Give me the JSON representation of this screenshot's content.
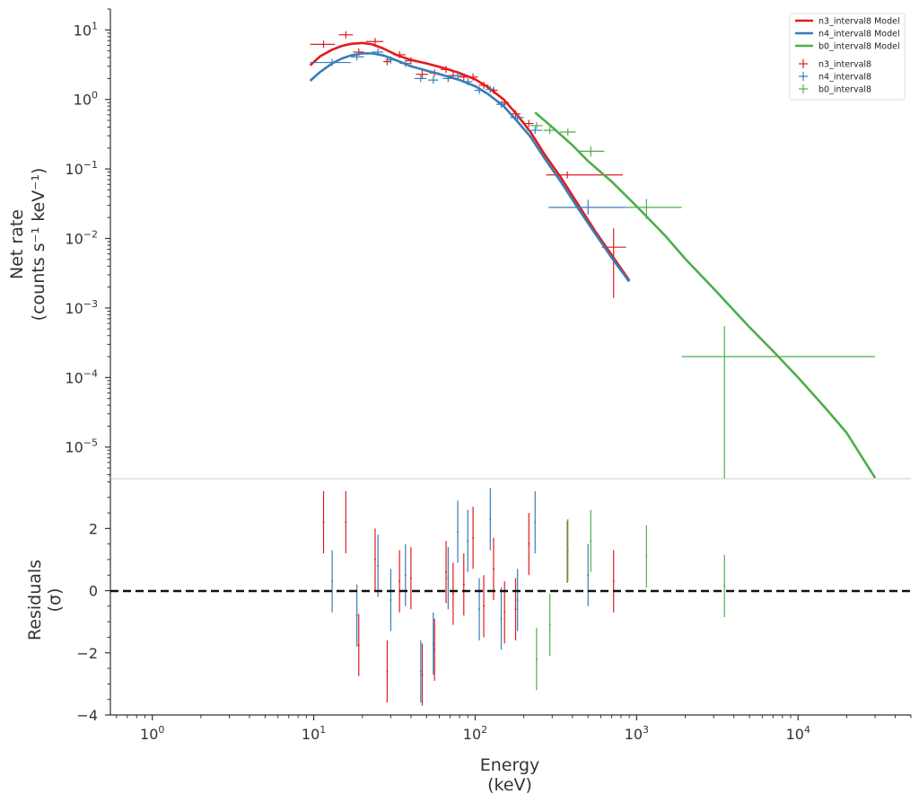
{
  "chart_data": {
    "type": "scatter",
    "x_scale": "log",
    "y_scale_top": "log",
    "xlabel": "Energy",
    "xlabel_unit": "(keV)",
    "ylabel_top": "Net rate",
    "ylabel_top_unit": "(counts s⁻¹ keV⁻¹)",
    "ylabel_bottom": "Residuals",
    "ylabel_bottom_unit": "(σ)",
    "xlim": [
      0.55,
      50000
    ],
    "ylim_top": [
      3.5e-06,
      20
    ],
    "ylim_bottom": [
      -4,
      3.6
    ],
    "legend_position": "top-right",
    "x_ticks": [
      {
        "value": 1,
        "base": "10",
        "exp": "0"
      },
      {
        "value": 10,
        "base": "10",
        "exp": "1"
      },
      {
        "value": 100,
        "base": "10",
        "exp": "2"
      },
      {
        "value": 1000,
        "base": "10",
        "exp": "3"
      },
      {
        "value": 10000,
        "base": "10",
        "exp": "4"
      }
    ],
    "y_ticks_top": [
      {
        "value": 10,
        "base": "10",
        "exp": "1"
      },
      {
        "value": 1,
        "base": "10",
        "exp": "0"
      },
      {
        "value": 0.1,
        "base": "10",
        "exp": "−1"
      },
      {
        "value": 0.01,
        "base": "10",
        "exp": "−2"
      },
      {
        "value": 0.001,
        "base": "10",
        "exp": "−3"
      },
      {
        "value": 0.0001,
        "base": "10",
        "exp": "−4"
      },
      {
        "value": 1e-05,
        "base": "10",
        "exp": "−5"
      }
    ],
    "y_ticks_bottom": [
      {
        "value": 2,
        "label": "2"
      },
      {
        "value": 0,
        "label": "0"
      },
      {
        "value": -2,
        "label": "−2"
      },
      {
        "value": -4,
        "label": "−4"
      }
    ],
    "series": [
      {
        "name": "n3_interval8",
        "model_name": "n3_interval8 Model",
        "color": "#e41a1c",
        "model": [
          [
            9.5,
            3.1
          ],
          [
            11,
            4.2
          ],
          [
            13,
            5.2
          ],
          [
            15,
            5.9
          ],
          [
            17,
            6.3
          ],
          [
            20,
            6.5
          ],
          [
            23,
            6.2
          ],
          [
            27,
            5.4
          ],
          [
            33,
            4.3
          ],
          [
            40,
            3.7
          ],
          [
            50,
            3.3
          ],
          [
            65,
            2.8
          ],
          [
            80,
            2.4
          ],
          [
            100,
            1.95
          ],
          [
            120,
            1.5
          ],
          [
            150,
            1.0
          ],
          [
            180,
            0.62
          ],
          [
            220,
            0.34
          ],
          [
            270,
            0.16
          ],
          [
            340,
            0.075
          ],
          [
            430,
            0.032
          ],
          [
            550,
            0.013
          ],
          [
            700,
            0.0058
          ],
          [
            900,
            0.0025
          ]
        ],
        "points": [
          {
            "x": 11.5,
            "xlo": 9.5,
            "xhi": 13.5,
            "y": 6.2,
            "ylo": 6.2,
            "yhi": 6.2,
            "res": 2.2
          },
          {
            "x": 15.8,
            "xlo": 14.3,
            "xhi": 17.5,
            "y": 8.5,
            "ylo": 8.5,
            "yhi": 8.5,
            "res": 2.2
          },
          {
            "x": 19,
            "xlo": 17.5,
            "xhi": 20.5,
            "y": 4.8,
            "ylo": 4.8,
            "yhi": 4.8,
            "res": -1.75
          },
          {
            "x": 24,
            "xlo": 21,
            "xhi": 27,
            "y": 6.8,
            "ylo": 6.8,
            "yhi": 6.8,
            "res": 1.0
          },
          {
            "x": 28.5,
            "xlo": 27,
            "xhi": 30,
            "y": 3.5,
            "ylo": 3.5,
            "yhi": 3.5,
            "res": -2.6
          },
          {
            "x": 34,
            "xlo": 31,
            "xhi": 37,
            "y": 4.4,
            "ylo": 4.4,
            "yhi": 4.4,
            "res": 0.3
          },
          {
            "x": 40,
            "xlo": 37,
            "xhi": 43,
            "y": 3.6,
            "ylo": 3.6,
            "yhi": 3.6,
            "res": 0.4
          },
          {
            "x": 47,
            "xlo": 43,
            "xhi": 51,
            "y": 2.3,
            "ylo": 2.3,
            "yhi": 2.3,
            "res": -2.7
          },
          {
            "x": 56,
            "xlo": 52,
            "xhi": 60,
            "y": 2.4,
            "ylo": 2.4,
            "yhi": 2.4,
            "res": -1.9
          },
          {
            "x": 66,
            "xlo": 61,
            "xhi": 71,
            "y": 2.7,
            "ylo": 2.7,
            "yhi": 2.7,
            "res": 0.6
          },
          {
            "x": 73,
            "xlo": 69,
            "xhi": 77,
            "y": 2.2,
            "ylo": 2.2,
            "yhi": 2.2,
            "res": -0.1
          },
          {
            "x": 85,
            "xlo": 79,
            "xhi": 91,
            "y": 2.1,
            "ylo": 2.1,
            "yhi": 2.1,
            "res": 0.2
          },
          {
            "x": 97,
            "xlo": 90,
            "xhi": 104,
            "y": 2.1,
            "ylo": 2.1,
            "yhi": 2.1,
            "res": 1.7
          },
          {
            "x": 113,
            "xlo": 105,
            "xhi": 121,
            "y": 1.6,
            "ylo": 1.6,
            "yhi": 1.6,
            "res": -0.5
          },
          {
            "x": 130,
            "xlo": 122,
            "xhi": 138,
            "y": 1.35,
            "ylo": 1.35,
            "yhi": 1.35,
            "res": 0.7
          },
          {
            "x": 152,
            "xlo": 142,
            "xhi": 162,
            "y": 0.9,
            "ylo": 0.9,
            "yhi": 0.9,
            "res": -0.7
          },
          {
            "x": 178,
            "xlo": 165,
            "xhi": 191,
            "y": 0.62,
            "ylo": 0.62,
            "yhi": 0.62,
            "res": -0.6
          },
          {
            "x": 215,
            "xlo": 200,
            "xhi": 230,
            "y": 0.45,
            "ylo": 0.45,
            "yhi": 0.45,
            "res": 1.5
          },
          {
            "x": 372,
            "xlo": 275,
            "xhi": 820,
            "y": 0.082,
            "ylo": 0.082,
            "yhi": 0.082,
            "res": 1.25
          },
          {
            "x": 720,
            "xlo": 610,
            "xhi": 860,
            "y": 0.0075,
            "ylo": 0.0014,
            "yhi": 0.014,
            "res": 0.3
          }
        ]
      },
      {
        "name": "n4_interval8",
        "model_name": "n4_interval8 Model",
        "color": "#377eb8",
        "model": [
          [
            9.5,
            1.85
          ],
          [
            11,
            2.5
          ],
          [
            13,
            3.3
          ],
          [
            15,
            3.9
          ],
          [
            17,
            4.3
          ],
          [
            20,
            4.6
          ],
          [
            23,
            4.6
          ],
          [
            27,
            4.3
          ],
          [
            33,
            3.6
          ],
          [
            40,
            3.0
          ],
          [
            50,
            2.6
          ],
          [
            65,
            2.2
          ],
          [
            80,
            1.9
          ],
          [
            100,
            1.55
          ],
          [
            120,
            1.2
          ],
          [
            150,
            0.8
          ],
          [
            180,
            0.5
          ],
          [
            220,
            0.29
          ],
          [
            270,
            0.14
          ],
          [
            340,
            0.065
          ],
          [
            430,
            0.028
          ],
          [
            550,
            0.012
          ],
          [
            700,
            0.0053
          ],
          [
            900,
            0.0024
          ]
        ],
        "points": [
          {
            "x": 13,
            "xlo": 9.5,
            "xhi": 17,
            "y": 3.4,
            "ylo": 3.4,
            "yhi": 3.4,
            "res": 0.3
          },
          {
            "x": 18.5,
            "xlo": 17,
            "xhi": 20.5,
            "y": 4.1,
            "ylo": 4.1,
            "yhi": 4.1,
            "res": -0.8
          },
          {
            "x": 25,
            "xlo": 23,
            "xhi": 27,
            "y": 4.8,
            "ylo": 4.8,
            "yhi": 4.8,
            "res": 0.8
          },
          {
            "x": 30,
            "xlo": 28,
            "xhi": 32,
            "y": 3.7,
            "ylo": 3.7,
            "yhi": 3.7,
            "res": -0.3
          },
          {
            "x": 37,
            "xlo": 34,
            "xhi": 40,
            "y": 3.3,
            "ylo": 3.3,
            "yhi": 3.3,
            "res": 0.5
          },
          {
            "x": 46,
            "xlo": 42,
            "xhi": 50,
            "y": 2.0,
            "ylo": 2.0,
            "yhi": 2.0,
            "res": -2.6
          },
          {
            "x": 55,
            "xlo": 51,
            "xhi": 59,
            "y": 1.9,
            "ylo": 1.9,
            "yhi": 1.9,
            "res": -1.7
          },
          {
            "x": 68,
            "xlo": 63,
            "xhi": 73,
            "y": 2.0,
            "ylo": 2.0,
            "yhi": 2.0,
            "res": 0.4
          },
          {
            "x": 78,
            "xlo": 72,
            "xhi": 84,
            "y": 2.2,
            "ylo": 2.2,
            "yhi": 2.2,
            "res": 1.9
          },
          {
            "x": 90,
            "xlo": 84,
            "xhi": 96,
            "y": 1.8,
            "ylo": 1.8,
            "yhi": 1.8,
            "res": 1.6
          },
          {
            "x": 106,
            "xlo": 99,
            "xhi": 113,
            "y": 1.35,
            "ylo": 1.35,
            "yhi": 1.35,
            "res": -0.6
          },
          {
            "x": 124,
            "xlo": 116,
            "xhi": 132,
            "y": 1.4,
            "ylo": 1.4,
            "yhi": 1.4,
            "res": 2.3
          },
          {
            "x": 145,
            "xlo": 135,
            "xhi": 155,
            "y": 0.85,
            "ylo": 0.85,
            "yhi": 0.85,
            "res": -0.9
          },
          {
            "x": 183,
            "xlo": 165,
            "xhi": 200,
            "y": 0.55,
            "ylo": 0.55,
            "yhi": 0.55,
            "res": -0.3
          },
          {
            "x": 235,
            "xlo": 210,
            "xhi": 260,
            "y": 0.36,
            "ylo": 0.36,
            "yhi": 0.36,
            "res": 2.2
          },
          {
            "x": 500,
            "xlo": 285,
            "xhi": 850,
            "y": 0.028,
            "ylo": 0.022,
            "yhi": 0.036,
            "res": 0.5
          }
        ]
      },
      {
        "name": "b0_interval8",
        "model_name": "b0_interval8 Model",
        "color": "#4daf4a",
        "model": [
          [
            235,
            0.65
          ],
          [
            300,
            0.4
          ],
          [
            400,
            0.22
          ],
          [
            500,
            0.13
          ],
          [
            700,
            0.066
          ],
          [
            1000,
            0.029
          ],
          [
            1500,
            0.011
          ],
          [
            2000,
            0.0051
          ],
          [
            3000,
            0.0019
          ],
          [
            5000,
            0.00053
          ],
          [
            7000,
            0.00024
          ],
          [
            10000,
            0.0001
          ],
          [
            15000,
            3.5e-05
          ],
          [
            20000,
            1.6e-05
          ],
          [
            30000,
            3.6e-06
          ]
        ],
        "points": [
          {
            "x": 240,
            "xlo": 220,
            "xhi": 262,
            "y": 0.42,
            "ylo": 0.42,
            "yhi": 0.42,
            "res": -2.2
          },
          {
            "x": 290,
            "xlo": 265,
            "xhi": 320,
            "y": 0.36,
            "ylo": 0.36,
            "yhi": 0.36,
            "res": -1.1
          },
          {
            "x": 375,
            "xlo": 335,
            "xhi": 420,
            "y": 0.34,
            "ylo": 0.34,
            "yhi": 0.34,
            "res": 1.3
          },
          {
            "x": 520,
            "xlo": 440,
            "xhi": 630,
            "y": 0.18,
            "ylo": 0.15,
            "yhi": 0.21,
            "res": 1.6
          },
          {
            "x": 1150,
            "xlo": 850,
            "xhi": 1900,
            "y": 0.028,
            "ylo": 0.019,
            "yhi": 0.037,
            "res": 1.1
          },
          {
            "x": 3500,
            "xlo": 1900,
            "xhi": 30000,
            "y": 0.0002,
            "ylo": 3.5e-06,
            "yhi": 0.00055,
            "res": 0.15
          }
        ]
      }
    ]
  }
}
